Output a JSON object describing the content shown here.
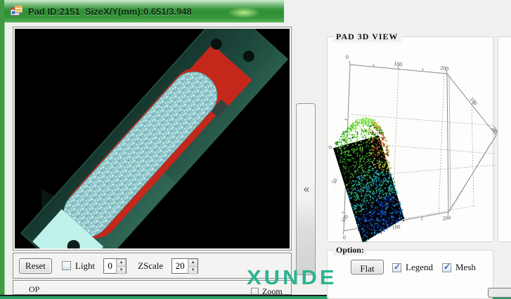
{
  "window": {
    "title": "Pad ID:2151  SizeX/Y(mm):0.651/3.948"
  },
  "left_panel": {
    "reset_label": "Reset",
    "light_label": "Light",
    "light_value": "0",
    "zscale_label": "ZScale",
    "zscale_value": "20",
    "partial_text": "OP"
  },
  "bottom_row": {
    "partial_zoom_label": "Zoom"
  },
  "divider": {
    "collapse_glyph": "«"
  },
  "view3d": {
    "title": "PAD 3D VIEW",
    "axes": {
      "top": [
        "0",
        "100",
        "200"
      ],
      "right": [
        "100",
        "200"
      ],
      "left": [
        "0",
        "50",
        "100"
      ],
      "bottom": [
        "0",
        "100",
        "200"
      ]
    }
  },
  "options": {
    "title": "Option:",
    "flat_label": "Flat",
    "legend_label": "Legend",
    "legend_checked": true,
    "mesh_label": "Mesh",
    "mesh_checked": true
  },
  "watermark": "XUNDE",
  "icons": {
    "check": "✓",
    "spin_up": "▲",
    "spin_down": "▼"
  },
  "colors": {
    "titlebar_green": "#3f9a43",
    "watermark_teal": "#2bb391",
    "pad_red": "#c3281a",
    "pad_cyan": "#9fd2d5",
    "pcb_teal": "#1d473c",
    "check_blue": "#2f5fb0",
    "desktop_strip": "#27a468"
  },
  "plot3d": {
    "type": "scatter3d-heightmap",
    "description": "3D height map of pad surface, jet colormap point cloud on black base plane",
    "seed": 7,
    "n_dots": 1400,
    "quad": {
      "A": [
        12,
        158
      ],
      "B": [
        77,
        140
      ],
      "C": [
        113,
        258
      ],
      "D": [
        54,
        293
      ]
    },
    "palettes": {
      "green": [
        "#07450c",
        "#156e15",
        "#2f9e27",
        "#52cb33",
        "#7de24a"
      ],
      "red": [
        "#7e1c00",
        "#b33913",
        "#d55f22",
        "#e8852f"
      ],
      "yellow": [
        "#b9a22b",
        "#cfc23a",
        "#9acd32"
      ],
      "mid": [
        "#1fa86c",
        "#22b3a8",
        "#2a8fd0",
        "#2f9e4f"
      ],
      "blue": [
        "#0b2f9a",
        "#1550d2",
        "#17a8cc",
        "#071f6e",
        "#0d3fb0"
      ],
      "spark": "#9df05a"
    }
  }
}
